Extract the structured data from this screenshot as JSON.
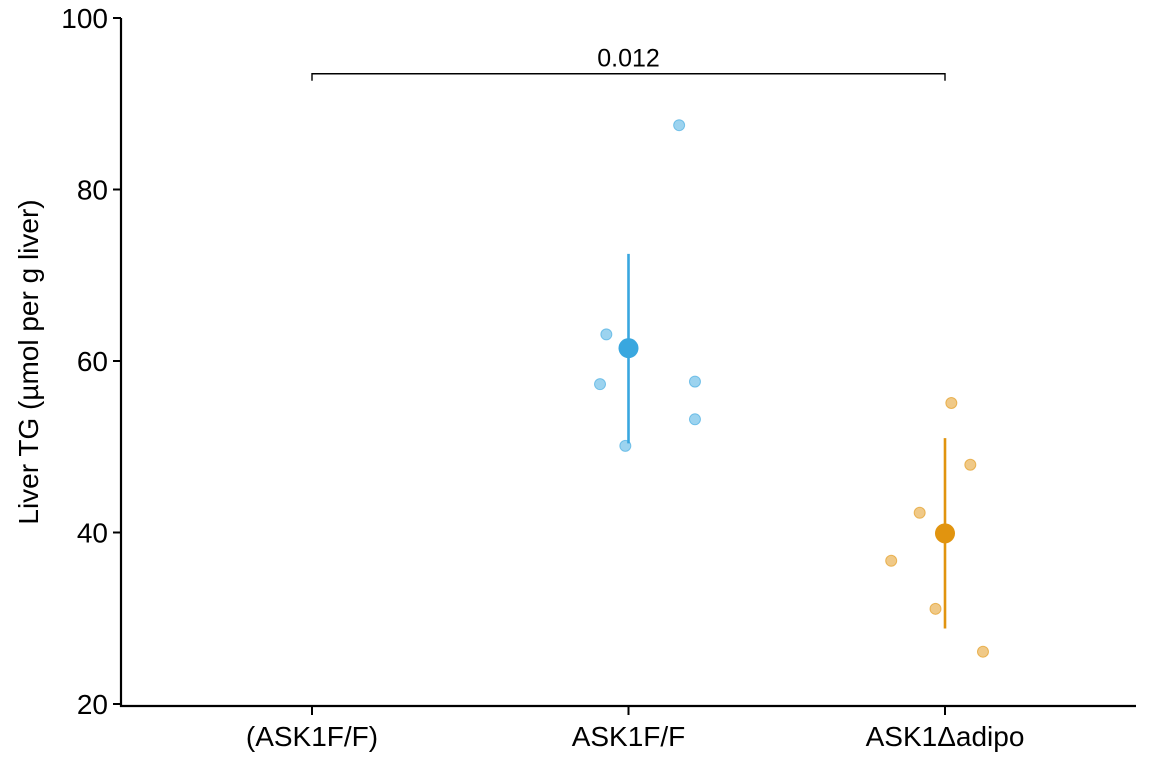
{
  "chart_data": {
    "type": "scatter",
    "title": "",
    "xlabel": "",
    "ylabel": "Liver TG (µmol per g liver)",
    "ylim": [
      20,
      100
    ],
    "yticks": [
      20,
      40,
      60,
      80,
      100
    ],
    "categories": [
      "(ASK1F/F)",
      "ASK1F/F",
      "ASK1Δadipo"
    ],
    "grid": false,
    "legend": "none",
    "series": [
      {
        "category": "ASK1F/F",
        "color": "#39a7df",
        "points": [
          {
            "offset": -0.09,
            "y": 57.3
          },
          {
            "offset": -0.07,
            "y": 63.1
          },
          {
            "offset": -0.01,
            "y": 50.1
          },
          {
            "offset": 0.16,
            "y": 87.5
          },
          {
            "offset": 0.21,
            "y": 57.6
          },
          {
            "offset": 0.21,
            "y": 53.2
          }
        ],
        "mean": 61.5,
        "error_low": 50.4,
        "error_high": 72.5
      },
      {
        "category": "ASK1Δadipo",
        "color": "#e1940f",
        "points": [
          {
            "offset": -0.17,
            "y": 36.7
          },
          {
            "offset": -0.08,
            "y": 42.3
          },
          {
            "offset": -0.03,
            "y": 31.1
          },
          {
            "offset": 0.02,
            "y": 55.1
          },
          {
            "offset": 0.08,
            "y": 47.9
          },
          {
            "offset": 0.12,
            "y": 26.1
          }
        ],
        "mean": 39.9,
        "error_low": 28.8,
        "error_high": 51.0
      }
    ],
    "annotations": [
      {
        "type": "significance-bracket",
        "from": "(ASK1F/F)",
        "to": "ASK1Δadipo",
        "y": 93.5,
        "label": "0.012"
      }
    ]
  }
}
